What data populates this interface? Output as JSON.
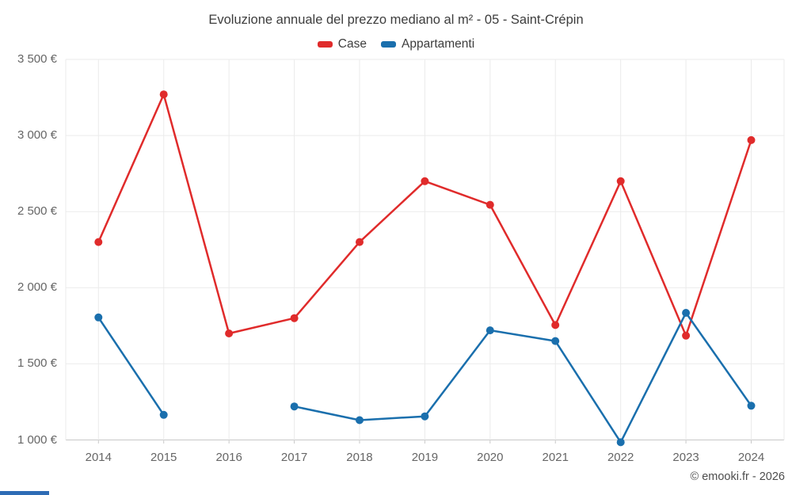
{
  "page": {
    "footer": "© emooki.fr - 2026",
    "brand_bar_color": "#2e6cb5"
  },
  "chart_data": {
    "type": "line",
    "title": "Evoluzione annuale del prezzo mediano al m² - 05 - Saint-Crépin",
    "x": [
      2014,
      2015,
      2016,
      2017,
      2018,
      2019,
      2020,
      2021,
      2022,
      2023,
      2024
    ],
    "series": [
      {
        "name": "Case",
        "color": "#e02b2b",
        "values": [
          2300,
          3270,
          1700,
          1800,
          2300,
          2700,
          2545,
          1755,
          2700,
          1685,
          2970
        ]
      },
      {
        "name": "Appartamenti",
        "color": "#1a6fad",
        "values": [
          1805,
          1165,
          null,
          1220,
          1130,
          1155,
          1720,
          1650,
          985,
          1835,
          1225
        ]
      }
    ],
    "ylim": [
      1000,
      3500
    ],
    "ytick_step": 500,
    "yticks": [
      {
        "value": 1000,
        "label": "1 000 €"
      },
      {
        "value": 1500,
        "label": "1 500 €"
      },
      {
        "value": 2000,
        "label": "2 000 €"
      },
      {
        "value": 2500,
        "label": "2 500 €"
      },
      {
        "value": 3000,
        "label": "3 000 €"
      },
      {
        "value": 3500,
        "label": "3 500 €"
      }
    ],
    "grid": true,
    "legend_position": "top",
    "grid_color": "#ebebeb",
    "axis_color": "#c9c9c9",
    "tick_label_color": "#666666"
  }
}
